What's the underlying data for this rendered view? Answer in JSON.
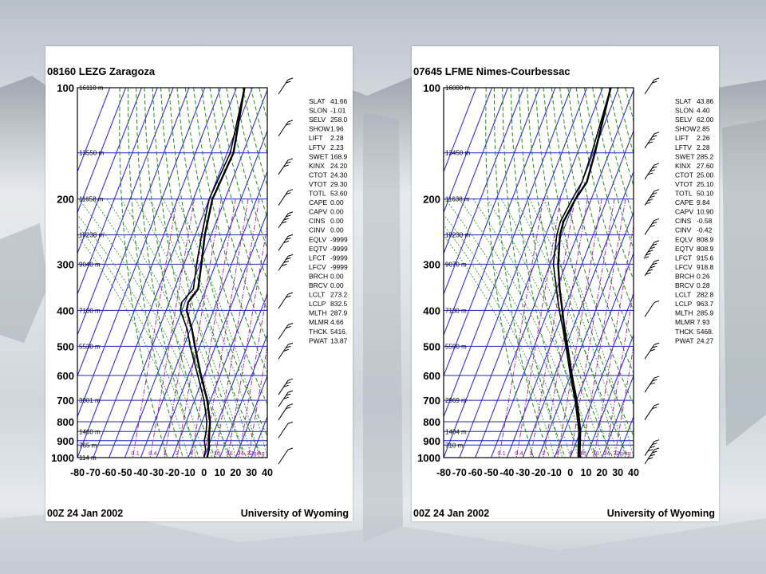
{
  "theme": {
    "isobar": "#1f1fd0",
    "isotherm": "#1f1fd0",
    "dry_adiabat": "#1f8a1f",
    "moist_adiabat": "#1f8a1f",
    "mixing_ratio": "#9a1f9a",
    "profile": "#000000"
  },
  "chart_data": [
    {
      "type": "line",
      "title": "08160 LEZG Zaragoza",
      "footer_left": "00Z 24 Jan 2002",
      "footer_right": "University of Wyoming",
      "x_ticks": [
        "-80",
        "-70",
        "-60",
        "-50",
        "-40",
        "-30",
        "-20",
        "-10",
        "0",
        "10",
        "20",
        "30",
        "40"
      ],
      "y_ticks": [
        "100",
        "200",
        "300",
        "400",
        "500",
        "600",
        "700",
        "800",
        "900",
        "1000"
      ],
      "height_labels": [
        {
          "p": 100,
          "label": "16110 m"
        },
        {
          "p": 150,
          "label": "13550 m"
        },
        {
          "p": 200,
          "label": "11658 m"
        },
        {
          "p": 250,
          "label": "10238 m"
        },
        {
          "p": 300,
          "label": "9040 m"
        },
        {
          "p": 400,
          "label": "7100 m"
        },
        {
          "p": 500,
          "label": "5530 m"
        },
        {
          "p": 700,
          "label": "3001 m"
        },
        {
          "p": 850,
          "label": "1460 m"
        },
        {
          "p": 925,
          "label": "765 m"
        },
        {
          "p": 1000,
          "label": "114 m"
        }
      ],
      "mixing_labels": [
        "0.1",
        "0.4",
        "1",
        "2",
        "4",
        "7",
        "10",
        "16",
        "24",
        "32g/kg"
      ],
      "temperature": {
        "name": "",
        "points": [
          [
            100,
            -65
          ],
          [
            150,
            -56
          ],
          [
            200,
            -58
          ],
          [
            250,
            -54
          ],
          [
            300,
            -49
          ],
          [
            350,
            -45
          ],
          [
            380,
            -48
          ],
          [
            400,
            -47
          ],
          [
            450,
            -39
          ],
          [
            500,
            -33
          ],
          [
            600,
            -22
          ],
          [
            700,
            -12
          ],
          [
            800,
            -5
          ],
          [
            850,
            -3
          ],
          [
            900,
            -1
          ],
          [
            950,
            1
          ],
          [
            1000,
            2
          ]
        ]
      },
      "dewpoint": {
        "name": "",
        "points": [
          [
            100,
            -65
          ],
          [
            150,
            -58
          ],
          [
            200,
            -60
          ],
          [
            250,
            -56
          ],
          [
            300,
            -52
          ],
          [
            350,
            -48
          ],
          [
            380,
            -52
          ],
          [
            400,
            -51
          ],
          [
            450,
            -42
          ],
          [
            500,
            -36
          ],
          [
            600,
            -24
          ],
          [
            700,
            -14
          ],
          [
            800,
            -7
          ],
          [
            850,
            -5
          ],
          [
            900,
            -4
          ],
          [
            950,
            -1
          ],
          [
            1000,
            0
          ]
        ]
      },
      "indices": [
        [
          "SLAT",
          "41.66"
        ],
        [
          "SLON",
          "-1.01"
        ],
        [
          "SELV",
          "258.0"
        ],
        [
          "SHOW",
          "1.96"
        ],
        [
          "LIFT",
          "2.28"
        ],
        [
          "LFTV",
          "2.23"
        ],
        [
          "SWET",
          "168.9"
        ],
        [
          "KINX",
          "24.20"
        ],
        [
          "CTOT",
          "24.30"
        ],
        [
          "VTOT",
          "29.30"
        ],
        [
          "TOTL",
          "53.60"
        ],
        [
          "CAPE",
          "0.00"
        ],
        [
          "CAPV",
          "0.00"
        ],
        [
          "CINS",
          "0.00"
        ],
        [
          "CINV",
          "0.00"
        ],
        [
          "EQLV",
          "-9999"
        ],
        [
          "EQTV",
          "-9999"
        ],
        [
          "LFCT",
          "-9999"
        ],
        [
          "LFCV",
          "-9999"
        ],
        [
          "BRCH",
          "0.00"
        ],
        [
          "BRCV",
          "0.00"
        ],
        [
          "LCLT",
          "273.2"
        ],
        [
          "LCLP",
          "832.5"
        ],
        [
          "MLTH",
          "287.9"
        ],
        [
          "MLMR",
          "4.66"
        ],
        [
          "THCK",
          "5416."
        ],
        [
          "PWAT",
          "13.87"
        ]
      ],
      "wind_barbs": [
        {
          "p": 100,
          "barbs": 2
        },
        {
          "p": 130,
          "barbs": 2
        },
        {
          "p": 165,
          "barbs": 3
        },
        {
          "p": 200,
          "barbs": 2
        },
        {
          "p": 230,
          "barbs": 4
        },
        {
          "p": 265,
          "barbs": 3
        },
        {
          "p": 300,
          "barbs": 4
        },
        {
          "p": 380,
          "barbs": 2
        },
        {
          "p": 460,
          "barbs": 2
        },
        {
          "p": 520,
          "barbs": 3
        },
        {
          "p": 650,
          "barbs": 3
        },
        {
          "p": 700,
          "barbs": 3
        },
        {
          "p": 760,
          "barbs": 2
        },
        {
          "p": 850,
          "barbs": 1
        },
        {
          "p": 1000,
          "barbs": 1
        }
      ]
    },
    {
      "type": "line",
      "title": "07645 LFME Nimes-Courbessac",
      "footer_left": "00Z 24 Jan 2002",
      "footer_right": "University of Wyoming",
      "x_ticks": [
        "-80",
        "-70",
        "-60",
        "-50",
        "-40",
        "-30",
        "-20",
        "-10",
        "0",
        "10",
        "20",
        "30",
        "40"
      ],
      "y_ticks": [
        "100",
        "200",
        "300",
        "400",
        "500",
        "600",
        "700",
        "800",
        "900",
        "1000"
      ],
      "height_labels": [
        {
          "p": 100,
          "label": "16000 m"
        },
        {
          "p": 150,
          "label": "13450 m"
        },
        {
          "p": 200,
          "label": "11638 m"
        },
        {
          "p": 250,
          "label": "10230 m"
        },
        {
          "p": 300,
          "label": "9070 m"
        },
        {
          "p": 400,
          "label": "7130 m"
        },
        {
          "p": 500,
          "label": "5590 m"
        },
        {
          "p": 700,
          "label": "2969 m"
        },
        {
          "p": 850,
          "label": "1404 m"
        },
        {
          "p": 925,
          "label": "710 m"
        }
      ],
      "mixing_labels": [
        "0.1",
        "0.4",
        "1",
        "2",
        "4",
        "7",
        "10",
        "16",
        "24",
        "32g/kg"
      ],
      "temperature": {
        "name": "",
        "points": [
          [
            100,
            -65
          ],
          [
            150,
            -59
          ],
          [
            180,
            -57
          ],
          [
            200,
            -60
          ],
          [
            230,
            -62
          ],
          [
            250,
            -61
          ],
          [
            300,
            -55
          ],
          [
            350,
            -48
          ],
          [
            400,
            -41
          ],
          [
            450,
            -35
          ],
          [
            500,
            -29
          ],
          [
            600,
            -19
          ],
          [
            700,
            -10
          ],
          [
            800,
            -3
          ],
          [
            850,
            0
          ],
          [
            900,
            2
          ],
          [
            950,
            4
          ],
          [
            1000,
            6
          ]
        ]
      },
      "dewpoint": {
        "name": "",
        "points": [
          [
            100,
            -65
          ],
          [
            150,
            -61
          ],
          [
            180,
            -60
          ],
          [
            200,
            -62
          ],
          [
            230,
            -64
          ],
          [
            250,
            -63
          ],
          [
            300,
            -58
          ],
          [
            350,
            -50
          ],
          [
            400,
            -43
          ],
          [
            450,
            -36
          ],
          [
            500,
            -30
          ],
          [
            600,
            -20
          ],
          [
            700,
            -11
          ],
          [
            800,
            -4
          ],
          [
            850,
            -1
          ],
          [
            900,
            1
          ],
          [
            950,
            3
          ],
          [
            1000,
            5
          ]
        ]
      },
      "indices": [
        [
          "SLAT",
          "43.86"
        ],
        [
          "SLON",
          "4.40"
        ],
        [
          "SELV",
          "62.00"
        ],
        [
          "SHOW",
          "2.85"
        ],
        [
          "LIFT",
          "2.26"
        ],
        [
          "LFTV",
          "2.28"
        ],
        [
          "SWET",
          "285.2"
        ],
        [
          "KINX",
          "27.60"
        ],
        [
          "CTOT",
          "25.00"
        ],
        [
          "VTOT",
          "25.10"
        ],
        [
          "TOTL",
          "50.10"
        ],
        [
          "CAPE",
          "9.84"
        ],
        [
          "CAPV",
          "10.90"
        ],
        [
          "CINS",
          "-0.58"
        ],
        [
          "CINV",
          "-0.42"
        ],
        [
          "EQLV",
          "808.9"
        ],
        [
          "EQTV",
          "808.9"
        ],
        [
          "LFCT",
          "915.6"
        ],
        [
          "LFCV",
          "918.8"
        ],
        [
          "BRCH",
          "0.26"
        ],
        [
          "BRCV",
          "0.28"
        ],
        [
          "LCLT",
          "282.8"
        ],
        [
          "LCLP",
          "963.7"
        ],
        [
          "MLTH",
          "285.9"
        ],
        [
          "MLMR",
          "7.93"
        ],
        [
          "THCK",
          "5468."
        ],
        [
          "PWAT",
          "24.27"
        ]
      ],
      "wind_barbs": [
        {
          "p": 100,
          "barbs": 2
        },
        {
          "p": 140,
          "barbs": 4
        },
        {
          "p": 170,
          "barbs": 4
        },
        {
          "p": 200,
          "barbs": 5
        },
        {
          "p": 240,
          "barbs": 3
        },
        {
          "p": 275,
          "barbs": 6
        },
        {
          "p": 310,
          "barbs": 5
        },
        {
          "p": 400,
          "barbs": 1
        },
        {
          "p": 520,
          "barbs": 3
        },
        {
          "p": 640,
          "barbs": 3
        },
        {
          "p": 760,
          "barbs": 2
        },
        {
          "p": 950,
          "barbs": 4
        },
        {
          "p": 1000,
          "barbs": 4
        }
      ]
    }
  ]
}
